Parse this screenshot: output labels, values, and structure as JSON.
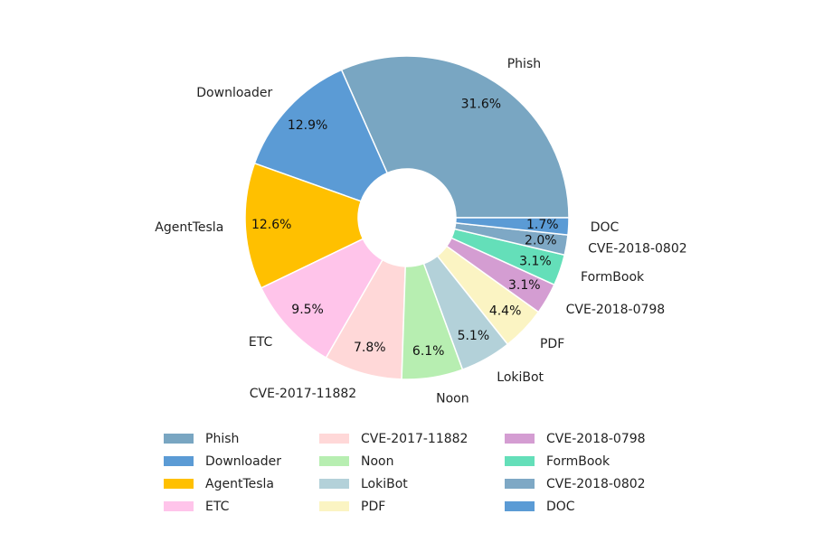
{
  "chart_data": {
    "type": "pie",
    "donut": true,
    "start_angle_deg": 0,
    "direction": "counterclockwise",
    "categories": [
      "Phish",
      "Downloader",
      "AgentTesla",
      "ETC",
      "CVE-2017-11882",
      "Noon",
      "LokiBot",
      "PDF",
      "CVE-2018-0798",
      "FormBook",
      "CVE-2018-0802",
      "DOC"
    ],
    "values": [
      31.6,
      12.9,
      12.6,
      9.5,
      7.8,
      6.1,
      5.1,
      4.4,
      3.1,
      3.1,
      2.0,
      1.7
    ],
    "value_labels": [
      "31.6%",
      "12.9%",
      "12.6%",
      "9.5%",
      "7.8%",
      "6.1%",
      "5.1%",
      "4.4%",
      "3.1%",
      "3.1%",
      "2.0%",
      "1.7%"
    ],
    "colors": [
      "#79a6c2",
      "#5b9bd5",
      "#ffc000",
      "#ffc4ea",
      "#ffd8d8",
      "#b7eeb1",
      "#b3d1d9",
      "#fbf4c3",
      "#d49dd2",
      "#64dfb9",
      "#7ea8c5",
      "#5b9bd5"
    ],
    "legend": {
      "placement": "bottom",
      "columns": 3,
      "entries": [
        "Phish",
        "Downloader",
        "AgentTesla",
        "ETC",
        "CVE-2017-11882",
        "Noon",
        "LokiBot",
        "PDF",
        "CVE-2018-0798",
        "FormBook",
        "CVE-2018-0802",
        "DOC"
      ]
    },
    "title": ""
  }
}
